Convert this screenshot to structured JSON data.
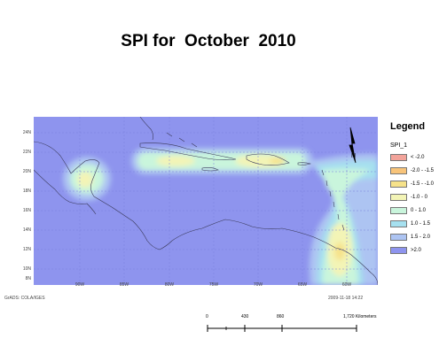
{
  "title": "SPI for  October  2010",
  "map": {
    "ocean_color": "#8e94ee",
    "lat_labels": [
      "24N",
      "22N",
      "20N",
      "18N",
      "16N",
      "14N",
      "12N",
      "10N",
      "8N"
    ],
    "lon_labels": [
      "90W",
      "85W",
      "80W",
      "75W",
      "70W",
      "65W",
      "60W"
    ]
  },
  "legend": {
    "title": "Legend",
    "field": "SPI_1",
    "items": [
      {
        "label": "< -2.0",
        "color": "#f2a39a"
      },
      {
        "label": "-2.0 - -1.5",
        "color": "#f8c47a"
      },
      {
        "label": "-1.5 - -1.0",
        "color": "#f6e28a"
      },
      {
        "label": "-1.0 - 0",
        "color": "#f3f4b6"
      },
      {
        "label": "0 - 1.0",
        "color": "#c9f5dc"
      },
      {
        "label": "1.0 - 1.5",
        "color": "#a6e0ef"
      },
      {
        "label": "1.5 - 2.0",
        "color": "#adc4f2"
      },
      {
        "label": ">2.0",
        "color": "#8e94ee"
      }
    ]
  },
  "credit": "GrADS: COLA/IGES",
  "timestamp": "2009-11-18  14:22",
  "scale_bar": {
    "labels": [
      "0",
      "430",
      "860",
      "1,720 Kilometers"
    ]
  }
}
